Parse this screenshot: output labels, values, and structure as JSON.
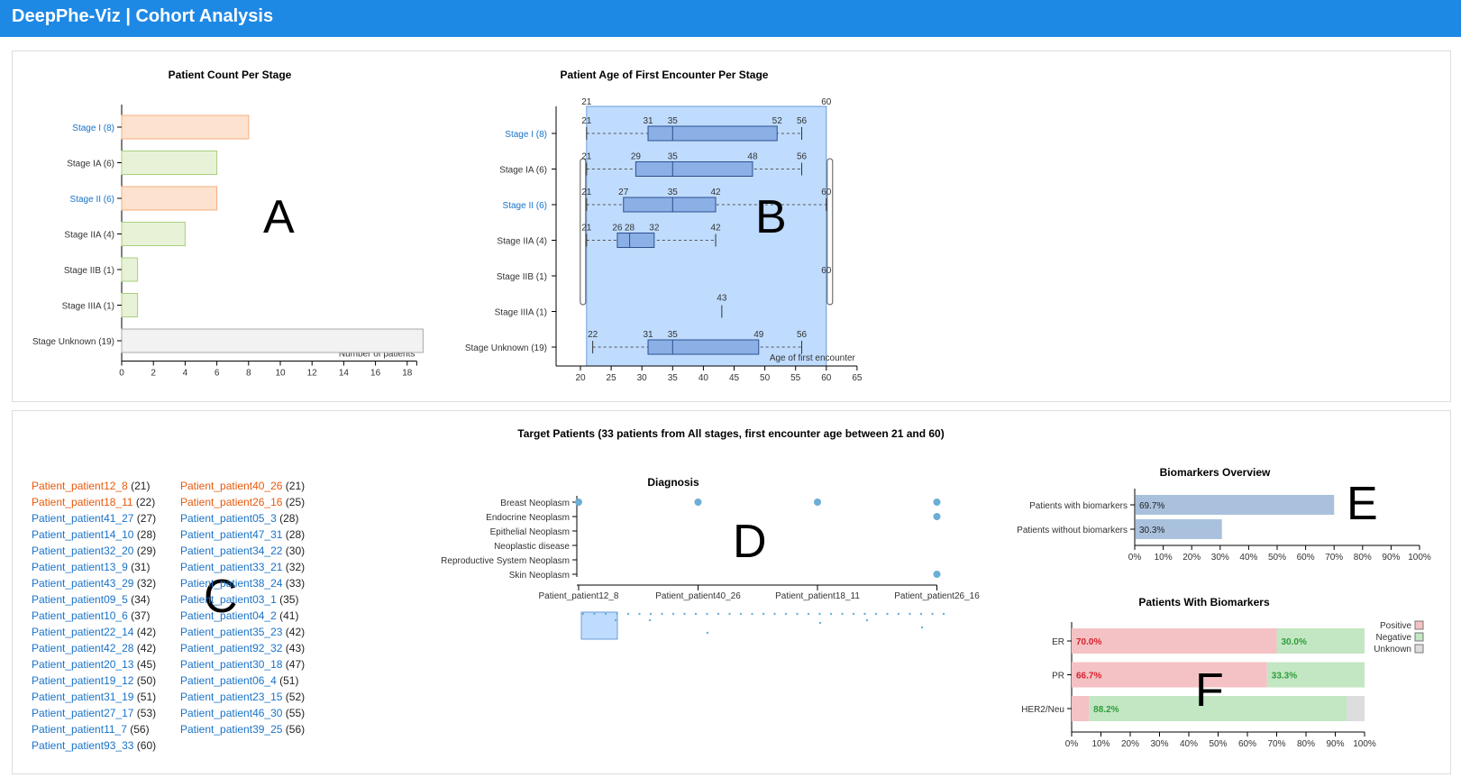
{
  "header": {
    "title": "DeepPhe-Viz | Cohort Analysis"
  },
  "stage_chart": {
    "title": "Patient Count Per Stage",
    "axis_label": "Number of patients",
    "ticks": [
      0,
      2,
      4,
      6,
      8,
      10,
      12,
      14,
      16,
      18
    ],
    "stages": [
      {
        "label": "Stage I (8)",
        "count": 8,
        "link": true,
        "fill": "#fde3cf",
        "stroke": "#f6ad7b"
      },
      {
        "label": "Stage IA (6)",
        "count": 6,
        "link": false,
        "fill": "#e7f2d7",
        "stroke": "#a9cf7f"
      },
      {
        "label": "Stage II (6)",
        "count": 6,
        "link": true,
        "fill": "#fde3cf",
        "stroke": "#f6ad7b"
      },
      {
        "label": "Stage IIA (4)",
        "count": 4,
        "link": false,
        "fill": "#e7f2d7",
        "stroke": "#a9cf7f"
      },
      {
        "label": "Stage IIB (1)",
        "count": 1,
        "link": false,
        "fill": "#e7f2d7",
        "stroke": "#a9cf7f"
      },
      {
        "label": "Stage IIIA (1)",
        "count": 1,
        "link": false,
        "fill": "#e7f2d7",
        "stroke": "#a9cf7f"
      },
      {
        "label": "Stage Unknown (19)",
        "count": 19,
        "link": false,
        "fill": "#f2f2f2",
        "stroke": "#aaaaaa"
      }
    ]
  },
  "age_chart": {
    "title": "Patient Age of First Encounter Per Stage",
    "axis_label": "Age of first encounter",
    "ticks": [
      20,
      25,
      30,
      35,
      40,
      45,
      50,
      55,
      60,
      65
    ],
    "brush": {
      "min_label": "21",
      "max_label": "60"
    },
    "side_labels": [
      "21",
      "21",
      "21",
      "21"
    ],
    "right_labels": [
      "60",
      "60"
    ],
    "stages": [
      {
        "label": "Stage I (8)",
        "link": true,
        "min": 21,
        "q1": 31,
        "median": 35,
        "q3": 52,
        "max": 56,
        "labels": [
          "21",
          "31",
          "35",
          "52",
          "56"
        ]
      },
      {
        "label": "Stage IA (6)",
        "link": false,
        "min": 21,
        "q1": 29,
        "median": 35,
        "q3": 48,
        "max": 56,
        "labels": [
          "21",
          "29",
          "35",
          "48",
          "56"
        ]
      },
      {
        "label": "Stage II (6)",
        "link": true,
        "min": 21,
        "q1": 27,
        "median": 35,
        "q3": 42,
        "max": 60,
        "labels": [
          "21",
          "27",
          "35",
          "42",
          "60"
        ]
      },
      {
        "label": "Stage IIA (4)",
        "link": false,
        "min": 21,
        "q1": 26,
        "median": 28,
        "q3": 32,
        "max": 42,
        "labels": [
          "21",
          "26",
          "28",
          "32",
          "42"
        ]
      },
      {
        "label": "Stage IIB (1)",
        "link": false,
        "single": 60,
        "labels": [
          "60"
        ]
      },
      {
        "label": "Stage IIIA (1)",
        "link": false,
        "single": 43,
        "labels": [
          "43"
        ]
      },
      {
        "label": "Stage Unknown (19)",
        "link": false,
        "min": 22,
        "q1": 31,
        "median": 35,
        "q3": 49,
        "max": 56,
        "labels": [
          "22",
          "31",
          "35",
          "49",
          "56"
        ]
      }
    ]
  },
  "target": {
    "title": "Target Patients (33 patients from All stages, first encounter age between 21 and 60)"
  },
  "patients": [
    {
      "name": "Patient_patient12_8",
      "age": "(21)",
      "target": true
    },
    {
      "name": "Patient_patient18_11",
      "age": "(22)",
      "target": true
    },
    {
      "name": "Patient_patient41_27",
      "age": "(27)",
      "target": false
    },
    {
      "name": "Patient_patient14_10",
      "age": "(28)",
      "target": false
    },
    {
      "name": "Patient_patient32_20",
      "age": "(29)",
      "target": false
    },
    {
      "name": "Patient_patient13_9",
      "age": "(31)",
      "target": false
    },
    {
      "name": "Patient_patient43_29",
      "age": "(32)",
      "target": false
    },
    {
      "name": "Patient_patient09_5",
      "age": "(34)",
      "target": false
    },
    {
      "name": "Patient_patient10_6",
      "age": "(37)",
      "target": false
    },
    {
      "name": "Patient_patient22_14",
      "age": "(42)",
      "target": false
    },
    {
      "name": "Patient_patient42_28",
      "age": "(42)",
      "target": false
    },
    {
      "name": "Patient_patient20_13",
      "age": "(45)",
      "target": false
    },
    {
      "name": "Patient_patient19_12",
      "age": "(50)",
      "target": false
    },
    {
      "name": "Patient_patient31_19",
      "age": "(51)",
      "target": false
    },
    {
      "name": "Patient_patient27_17",
      "age": "(53)",
      "target": false
    },
    {
      "name": "Patient_patient11_7",
      "age": "(56)",
      "target": false
    },
    {
      "name": "Patient_patient93_33",
      "age": "(60)",
      "target": false
    },
    {
      "name": "Patient_patient40_26",
      "age": "(21)",
      "target": true
    },
    {
      "name": "Patient_patient26_16",
      "age": "(25)",
      "target": true
    },
    {
      "name": "Patient_patient05_3",
      "age": "(28)",
      "target": false
    },
    {
      "name": "Patient_patient47_31",
      "age": "(28)",
      "target": false
    },
    {
      "name": "Patient_patient34_22",
      "age": "(30)",
      "target": false
    },
    {
      "name": "Patient_patient33_21",
      "age": "(32)",
      "target": false
    },
    {
      "name": "Patient_patient38_24",
      "age": "(33)",
      "target": false
    },
    {
      "name": "Patient_patient03_1",
      "age": "(35)",
      "target": false
    },
    {
      "name": "Patient_patient04_2",
      "age": "(41)",
      "target": false
    },
    {
      "name": "Patient_patient35_23",
      "age": "(42)",
      "target": false
    },
    {
      "name": "Patient_patient92_32",
      "age": "(43)",
      "target": false
    },
    {
      "name": "Patient_patient30_18",
      "age": "(47)",
      "target": false
    },
    {
      "name": "Patient_patient06_4",
      "age": "(51)",
      "target": false
    },
    {
      "name": "Patient_patient23_15",
      "age": "(52)",
      "target": false
    },
    {
      "name": "Patient_patient46_30",
      "age": "(55)",
      "target": false
    },
    {
      "name": "Patient_patient39_25",
      "age": "(56)",
      "target": false
    }
  ],
  "diagnosis": {
    "title": "Diagnosis",
    "rows": [
      "Breast Neoplasm",
      "Endocrine Neoplasm",
      "Epithelial Neoplasm",
      "Neoplastic disease",
      "Reproductive System Neoplasm",
      "Skin Neoplasm"
    ],
    "columns": [
      "Patient_patient12_8",
      "Patient_patient40_26",
      "Patient_patient18_11",
      "Patient_patient26_16"
    ],
    "dots": [
      [
        0,
        0
      ],
      [
        0,
        1
      ],
      [
        0,
        2
      ],
      [
        0,
        3
      ],
      [
        1,
        3
      ],
      [
        5,
        3
      ]
    ]
  },
  "biomarkers_overview": {
    "title": "Biomarkers Overview",
    "ticks": [
      "0%",
      "10%",
      "20%",
      "30%",
      "40%",
      "50%",
      "60%",
      "70%",
      "80%",
      "90%",
      "100%"
    ],
    "bars": [
      {
        "label": "Patients with biomarkers",
        "value": 69.7,
        "text": "69.7%"
      },
      {
        "label": "Patients without biomarkers",
        "value": 30.3,
        "text": "30.3%"
      }
    ]
  },
  "biomarkers_detail": {
    "title": "Patients With Biomarkers",
    "ticks": [
      "0%",
      "10%",
      "20%",
      "30%",
      "40%",
      "50%",
      "60%",
      "70%",
      "80%",
      "90%",
      "100%"
    ],
    "legend": [
      {
        "label": "Positive",
        "color": "#f4c2c4"
      },
      {
        "label": "Negative",
        "color": "#c3e6c3"
      },
      {
        "label": "Unknown",
        "color": "#dddddd"
      }
    ],
    "rows": [
      {
        "label": "ER",
        "positive": 70.0,
        "negative": 30.0,
        "unknown": 0,
        "pos_text": "70.0%",
        "neg_text": "30.0%"
      },
      {
        "label": "PR",
        "positive": 66.7,
        "negative": 33.3,
        "unknown": 0,
        "pos_text": "66.7%",
        "neg_text": "33.3%"
      },
      {
        "label": "HER2/Neu",
        "positive": 5.9,
        "negative": 88.2,
        "unknown": 5.9,
        "pos_text": "",
        "neg_text": "88.2%"
      }
    ]
  },
  "annotations": [
    "A",
    "B",
    "C",
    "D",
    "E",
    "F"
  ]
}
